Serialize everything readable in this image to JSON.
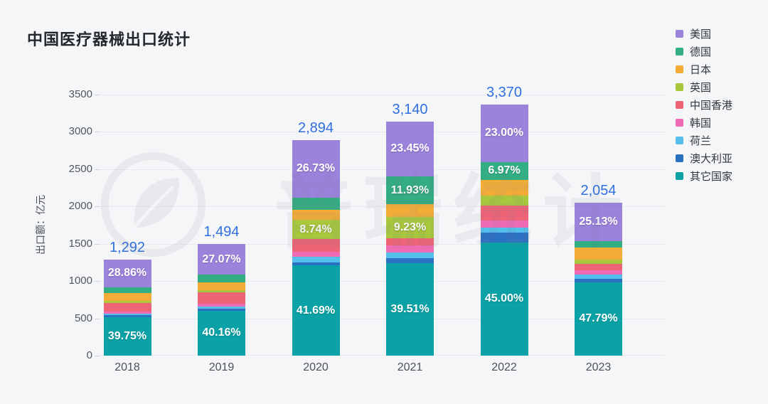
{
  "title": "中国医疗器械出口统计",
  "y_axis": {
    "label": "出口额：亿元",
    "ticks": [
      "0",
      "500",
      "1000",
      "1500",
      "2000",
      "2500",
      "3000",
      "3500"
    ]
  },
  "x_axis": {
    "labels": [
      "2018",
      "2019",
      "2020",
      "2021",
      "2022",
      "2023"
    ]
  },
  "legend": {
    "position": "right",
    "items": [
      {
        "id": "usa",
        "label": "美国",
        "color": "#9b82db"
      },
      {
        "id": "germany",
        "label": "德国",
        "color": "#33ad82"
      },
      {
        "id": "japan",
        "label": "日本",
        "color": "#f3ad37"
      },
      {
        "id": "uk",
        "label": "英国",
        "color": "#a8c73d"
      },
      {
        "id": "hong-kong",
        "label": "中国香港",
        "color": "#ee6476"
      },
      {
        "id": "south-korea",
        "label": "韩国",
        "color": "#ef6cb5"
      },
      {
        "id": "netherlands",
        "label": "荷兰",
        "color": "#55beec"
      },
      {
        "id": "australia",
        "label": "澳大利亚",
        "color": "#2b71c2"
      },
      {
        "id": "other-countries",
        "label": "其它国家",
        "color": "#0aa2a6"
      }
    ]
  },
  "watermark": {
    "text": "普瑞统计",
    "logo": "leaf-circle-logo"
  },
  "colors": {
    "background": "#f5f6f8",
    "gridline": "#e7eaee",
    "total_label": "#2f6fdf",
    "title_text": "#24282c",
    "axis_text": "#53585e",
    "segment_label_text": "#ffffff"
  },
  "chart_data": {
    "type": "bar",
    "stacked": true,
    "title": "中国医疗器械出口统计",
    "ylabel": "出口额：亿元",
    "unit": "亿元",
    "ylim": [
      0,
      3500
    ],
    "y_tick_step": 500,
    "grid": true,
    "legend_position": "right",
    "categories": [
      "2018",
      "2019",
      "2020",
      "2021",
      "2022",
      "2023"
    ],
    "totals": [
      1292,
      1494,
      2894,
      3140,
      3370,
      2054
    ],
    "total_labels": [
      "1,292",
      "1,494",
      "2,894",
      "3,140",
      "3,370",
      "2,054"
    ],
    "series": [
      {
        "id": "usa",
        "name": "美国",
        "color": "#9b82db",
        "pct": [
          28.86,
          27.07,
          26.73,
          23.45,
          23.0,
          25.13
        ],
        "pct_labels": [
          "28.86%",
          "27.07%",
          "26.73%",
          "23.45%",
          "23.00%",
          "25.13%"
        ]
      },
      {
        "id": "germany",
        "name": "德国",
        "color": "#33ad82",
        "pct": [
          6.1,
          7.2,
          5.8,
          11.93,
          6.97,
          4.3
        ],
        "pct_labels": [
          null,
          null,
          null,
          "11.93%",
          "6.97%",
          null
        ]
      },
      {
        "id": "japan",
        "name": "日本",
        "color": "#f3ad37",
        "pct": [
          7.9,
          7.0,
          4.7,
          5.3,
          6.5,
          7.98
        ],
        "pct_labels": [
          null,
          null,
          null,
          null,
          null,
          null
        ]
      },
      {
        "id": "uk",
        "name": "英国",
        "color": "#a8c73d",
        "pct": [
          2.7,
          2.2,
          8.74,
          9.23,
          3.7,
          2.5
        ],
        "pct_labels": [
          null,
          null,
          "8.74%",
          "9.23%",
          null,
          null
        ]
      },
      {
        "id": "hong-kong",
        "name": "中国香港",
        "color": "#ee6476",
        "pct": [
          8.6,
          10.0,
          5.8,
          3.1,
          6.1,
          4.6
        ],
        "pct_labels": [
          null,
          null,
          null,
          null,
          null,
          null
        ]
      },
      {
        "id": "south-korea",
        "name": "韩国",
        "color": "#ef6cb5",
        "pct": [
          2.2,
          2.6,
          2.6,
          3.1,
          2.73,
          2.5
        ],
        "pct_labels": [
          null,
          null,
          null,
          null,
          null,
          null
        ]
      },
      {
        "id": "netherlands",
        "name": "荷兰",
        "color": "#55beec",
        "pct": [
          1.8,
          1.8,
          2.4,
          2.4,
          2.1,
          2.7
        ],
        "pct_labels": [
          null,
          null,
          null,
          null,
          null,
          null
        ]
      },
      {
        "id": "australia",
        "name": "澳大利亚",
        "color": "#2b71c2",
        "pct": [
          2.09,
          1.97,
          1.54,
          1.98,
          3.9,
          2.5
        ],
        "pct_labels": [
          null,
          null,
          null,
          null,
          null,
          null
        ]
      },
      {
        "id": "other-countries",
        "name": "其它国家",
        "color": "#0aa2a6",
        "pct": [
          39.75,
          40.16,
          41.69,
          39.51,
          45.0,
          47.79
        ],
        "pct_labels": [
          "39.75%",
          "40.16%",
          "41.69%",
          "39.51%",
          "45.00%",
          "47.79%"
        ]
      }
    ]
  }
}
